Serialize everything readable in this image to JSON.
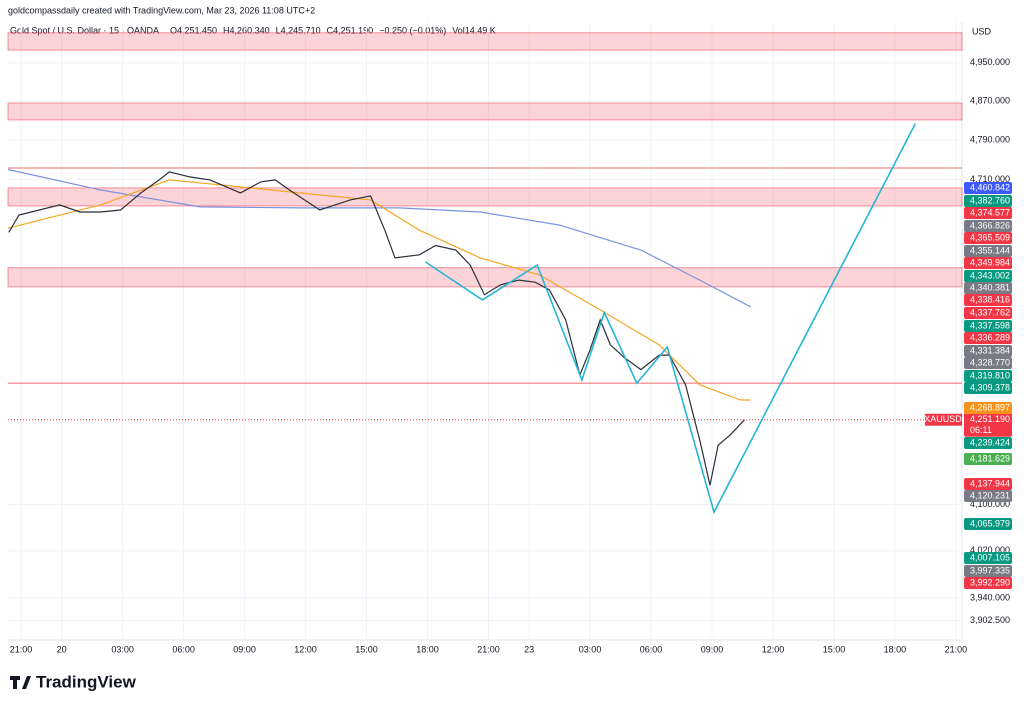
{
  "header": {
    "credit": "goldcompassdaily created with TradingView.com, Mar 23, 2026 11:08 UTC+2",
    "symbol": "Gold Spot / U.S. Dollar · 15 · OANDA",
    "ohlc": [
      "O4,251.450",
      "H4,260.340",
      "L4,245.710",
      "C4,251.190",
      "−0.250 (−0.01%)",
      "Vol14.49 K"
    ],
    "currency": "USD"
  },
  "footer": {
    "brand": "TradingView"
  },
  "chart_data": {
    "type": "line",
    "log_scale": true,
    "xlim": [
      -0.64,
      46.3
    ],
    "ylim": [
      3870,
      5037
    ],
    "xticks": [
      {
        "value": 0,
        "label": "21:00"
      },
      {
        "value": 2,
        "label": "20"
      },
      {
        "value": 5,
        "label": "03:00"
      },
      {
        "value": 8,
        "label": "06:00"
      },
      {
        "value": 11,
        "label": "09:00"
      },
      {
        "value": 14,
        "label": "12:00"
      },
      {
        "value": 17,
        "label": "15:00"
      },
      {
        "value": 20,
        "label": "18:00"
      },
      {
        "value": 23,
        "label": "21:00"
      },
      {
        "value": 25,
        "label": "23"
      },
      {
        "value": 28,
        "label": "03:00"
      },
      {
        "value": 31,
        "label": "06:00"
      },
      {
        "value": 34,
        "label": "09:00"
      },
      {
        "value": 37,
        "label": "12:00"
      },
      {
        "value": 40,
        "label": "15:00"
      },
      {
        "value": 43,
        "label": "18:00"
      },
      {
        "value": 46,
        "label": "21:00"
      }
    ],
    "yticks": [
      {
        "value": 4950,
        "label": "4,950.000"
      },
      {
        "value": 4870,
        "label": "4,870.000"
      },
      {
        "value": 4790,
        "label": "4,790.000"
      },
      {
        "value": 4710,
        "label": "4,710.000"
      },
      {
        "value": 4100,
        "label": "4,100.000"
      },
      {
        "value": 4020,
        "label": "4,020.000"
      },
      {
        "value": 3940,
        "label": "3,940.000"
      },
      {
        "value": 3902.5,
        "label": "3,902.500"
      }
    ],
    "zones": [
      {
        "from": 4977,
        "to": 5014
      },
      {
        "from": 4831,
        "to": 4866
      },
      {
        "from": 4657,
        "to": 4693
      },
      {
        "from": 4499,
        "to": 4536
      }
    ],
    "levels": [
      4733,
      4318
    ],
    "series": [
      {
        "color": "#7b92e0",
        "x": [
          -0.64,
          3.9,
          8.8,
          13.7,
          18.6,
          22.6,
          26.5,
          30.5,
          33.4,
          35.9
        ],
        "values": [
          4730,
          4689,
          4655,
          4653,
          4653,
          4645,
          4619,
          4570,
          4512,
          4461
        ]
      },
      {
        "color": "#f5a623",
        "x": [
          -0.64,
          3.9,
          7.3,
          11.3,
          13.7,
          17.2,
          19.6,
          22.6,
          25.5,
          28.5,
          31.4,
          33.4,
          35.4,
          35.9
        ],
        "values": [
          4613,
          4659,
          4709,
          4693,
          4683,
          4669,
          4609,
          4555,
          4522,
          4455,
          4389,
          4315,
          4287,
          4287
        ]
      },
      {
        "color": "#2a2e39",
        "x": [
          -0.6,
          -0.1,
          0.9,
          1.9,
          2.9,
          3.9,
          4.9,
          5.9,
          6.8,
          7.3,
          8.3,
          9.3,
          10.8,
          11.8,
          12.5,
          13.2,
          14.7,
          16.2,
          17.2,
          17.9,
          18.4,
          19.6,
          20.4,
          21.4,
          22.1,
          22.8,
          23.6,
          24.5,
          25.3,
          26.0,
          26.8,
          27.5,
          28.0,
          28.5,
          29.0,
          29.7,
          30.5,
          31.4,
          31.9,
          32.7,
          33.4,
          33.9,
          34.3,
          34.9,
          35.6
        ],
        "values": [
          4605,
          4639,
          4649,
          4659,
          4645,
          4645,
          4649,
          4683,
          4709,
          4725,
          4715,
          4709,
          4683,
          4705,
          4709,
          4689,
          4649,
          4669,
          4677,
          4609,
          4555,
          4561,
          4579,
          4570,
          4541,
          4484,
          4503,
          4512,
          4508,
          4493,
          4436,
          4333,
          4380,
          4436,
          4389,
          4365,
          4343,
          4370,
          4370,
          4315,
          4214,
          4134,
          4205,
          4224,
          4251
        ]
      },
      {
        "color": "#26b5d6",
        "x": [
          19.9,
          22.7,
          25.4,
          27.6,
          28.7,
          30.3,
          31.8,
          34.1,
          44.0
        ],
        "values": [
          4547,
          4474,
          4541,
          4324,
          4450,
          4318,
          4385,
          4087,
          4823
        ]
      }
    ],
    "last_price": {
      "value": 4251.19,
      "label": "4,251.190",
      "symbol": "XAUUSD",
      "countdown": "06:11",
      "color": "#f23645"
    },
    "price_labels": [
      {
        "value": 4460.842,
        "label": "4,460.842",
        "color": "#3d5afe"
      },
      {
        "value": 4382.76,
        "label": "4,382.760",
        "color": "#089981"
      },
      {
        "value": 4374.577,
        "label": "4,374.577",
        "color": "#f23645"
      },
      {
        "value": 4366.826,
        "label": "4,366.826",
        "color": "#787b86"
      },
      {
        "value": 4365.509,
        "label": "4,365.509",
        "color": "#f23645"
      },
      {
        "value": 4355.144,
        "label": "4,355.144",
        "color": "#787b86"
      },
      {
        "value": 4349.984,
        "label": "4,349.984",
        "color": "#f23645"
      },
      {
        "value": 4343.002,
        "label": "4,343.002",
        "color": "#089981"
      },
      {
        "value": 4340.381,
        "label": "4,340.381",
        "color": "#787b86"
      },
      {
        "value": 4338.416,
        "label": "4,338.416",
        "color": "#f23645"
      },
      {
        "value": 4337.762,
        "label": "4,337.762",
        "color": "#f23645"
      },
      {
        "value": 4337.598,
        "label": "4,337.598",
        "color": "#089981"
      },
      {
        "value": 4336.289,
        "label": "4,336.289",
        "color": "#f23645"
      },
      {
        "value": 4331.384,
        "label": "4,331.384",
        "color": "#787b86"
      },
      {
        "value": 4328.77,
        "label": "4,328.770",
        "color": "#787b86"
      },
      {
        "value": 4319.81,
        "label": "4,319.810",
        "color": "#089981"
      },
      {
        "value": 4309.378,
        "label": "4,309.378",
        "color": "#089981"
      },
      {
        "value": 4268.897,
        "label": "4,268.897",
        "color": "#f7931a"
      },
      {
        "value": 4239.424,
        "label": "4,239.424",
        "color": "#089981"
      },
      {
        "value": 4181.629,
        "label": "4,181.629",
        "color": "#4caf50"
      },
      {
        "value": 4137.944,
        "label": "4,137.944",
        "color": "#f23645"
      },
      {
        "value": 4120.231,
        "label": "4,120.231",
        "color": "#787b86"
      },
      {
        "value": 4065.979,
        "label": "4,065.979",
        "color": "#089981"
      },
      {
        "value": 4007.105,
        "label": "4,007.105",
        "color": "#089981"
      },
      {
        "value": 3997.335,
        "label": "3,997.335",
        "color": "#787b86"
      },
      {
        "value": 3992.29,
        "label": "3,992.290",
        "color": "#f23645"
      }
    ]
  }
}
